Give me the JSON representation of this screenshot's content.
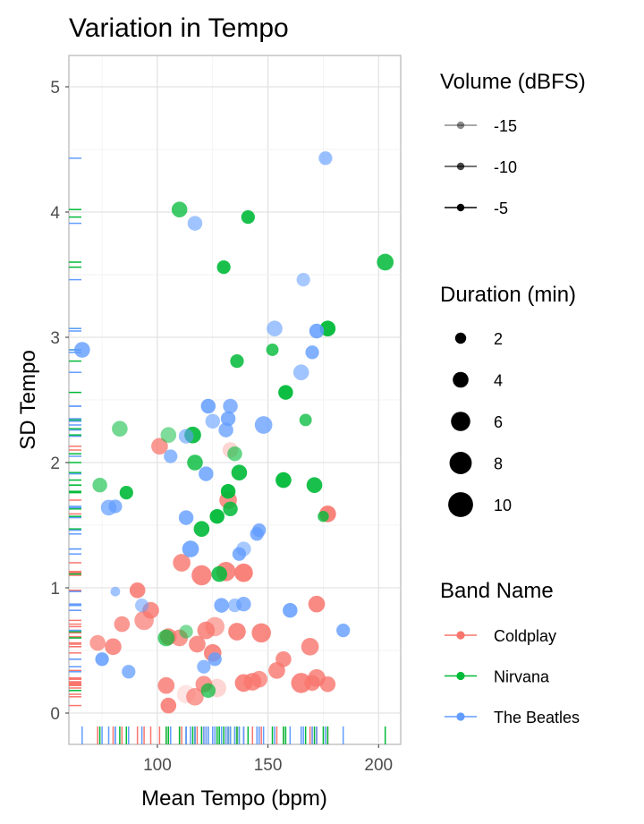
{
  "chart_data": {
    "type": "scatter",
    "title": "Variation in Tempo",
    "xlabel": "Mean Tempo (bpm)",
    "ylabel": "SD Tempo",
    "xlim": [
      60,
      210
    ],
    "ylim": [
      -0.25,
      5.25
    ],
    "x_ticks": [
      100,
      150,
      200
    ],
    "y_ticks": [
      0,
      1,
      2,
      3,
      4,
      5
    ],
    "grid": true,
    "rug": true,
    "legend_position": "right",
    "colors": {
      "Coldplay": "#F8766D",
      "Nirvana": "#00BA38",
      "The Beatles": "#619CFF"
    },
    "legend_volume": {
      "title": "Volume (dBFS)",
      "items": [
        "-15",
        "-10",
        "-5"
      ]
    },
    "legend_duration": {
      "title": "Duration (min)",
      "items": [
        "2",
        "4",
        "6",
        "8",
        "10"
      ]
    },
    "legend_band": {
      "title": "Band Name",
      "items": [
        "Coldplay",
        "Nirvana",
        "The Beatles"
      ]
    },
    "series": [
      {
        "name": "Coldplay",
        "points": [
          [
            73,
            0.56,
            4,
            0.7
          ],
          [
            80,
            0.53,
            4.5,
            0.8
          ],
          [
            84,
            0.71,
            4,
            0.75
          ],
          [
            91,
            0.98,
            4,
            0.85
          ],
          [
            94,
            0.74,
            6,
            0.7
          ],
          [
            97,
            0.82,
            4.5,
            0.8
          ],
          [
            101,
            2.13,
            4.5,
            0.75
          ],
          [
            104,
            0.22,
            4.5,
            0.8
          ],
          [
            105,
            0.61,
            4.5,
            0.8
          ],
          [
            105,
            0.06,
            4,
            0.85
          ],
          [
            110,
            0.6,
            4.5,
            0.75
          ],
          [
            111,
            1.2,
            5,
            0.8
          ],
          [
            113,
            0.15,
            5.5,
            0.2
          ],
          [
            117,
            0.13,
            5,
            0.7
          ],
          [
            118,
            0.55,
            4.5,
            0.8
          ],
          [
            120,
            1.1,
            6.5,
            0.85
          ],
          [
            121,
            0.23,
            4.5,
            0.75
          ],
          [
            122,
            0.66,
            5,
            0.8
          ],
          [
            125,
            0.48,
            5,
            0.85
          ],
          [
            126,
            0.69,
            6,
            0.6
          ],
          [
            127,
            0.2,
            5.5,
            0.3
          ],
          [
            131,
            1.13,
            6,
            0.85
          ],
          [
            132,
            1.7,
            5,
            0.8
          ],
          [
            133,
            2.1,
            4,
            0.3
          ],
          [
            136,
            0.65,
            5,
            0.85
          ],
          [
            139,
            1.12,
            5.5,
            0.9
          ],
          [
            139,
            0.24,
            5,
            0.85
          ],
          [
            143,
            0.25,
            5,
            0.8
          ],
          [
            146,
            0.27,
            4.5,
            0.75
          ],
          [
            147,
            0.64,
            6,
            0.85
          ],
          [
            154,
            0.34,
            4.5,
            0.8
          ],
          [
            157,
            0.43,
            4,
            0.8
          ],
          [
            165,
            0.24,
            6.5,
            0.85
          ],
          [
            169,
            0.53,
            5,
            0.8
          ],
          [
            170,
            0.24,
            4,
            0.8
          ],
          [
            172,
            0.87,
            4.5,
            0.85
          ],
          [
            172,
            0.28,
            5,
            0.8
          ],
          [
            177,
            0.23,
            4,
            0.8
          ],
          [
            177,
            1.59,
            4.5,
            0.9
          ]
        ]
      },
      {
        "name": "Nirvana",
        "points": [
          [
            74,
            1.82,
            3.5,
            0.6
          ],
          [
            83,
            2.27,
            4,
            0.55
          ],
          [
            86,
            1.76,
            3,
            0.9
          ],
          [
            104,
            0.6,
            4.5,
            0.7
          ],
          [
            105,
            2.22,
            4,
            0.5
          ],
          [
            110,
            4.02,
            4,
            0.75
          ],
          [
            113,
            0.65,
            3,
            0.5
          ],
          [
            116,
            2.22,
            4.5,
            0.9
          ],
          [
            117,
            2.0,
            4,
            0.8
          ],
          [
            120,
            1.47,
            4,
            0.9
          ],
          [
            123,
            0.18,
            3.5,
            0.7
          ],
          [
            127,
            1.57,
            3.5,
            0.95
          ],
          [
            128,
            1.11,
            4,
            0.85
          ],
          [
            130,
            3.56,
            3,
            0.9
          ],
          [
            132,
            1.77,
            3.5,
            0.95
          ],
          [
            133,
            1.63,
            3.5,
            0.85
          ],
          [
            135,
            2.07,
            3.5,
            0.6
          ],
          [
            136,
            2.81,
            3,
            0.85
          ],
          [
            137,
            1.92,
            4,
            0.9
          ],
          [
            141,
            3.96,
            3,
            0.9
          ],
          [
            152,
            2.9,
            2.5,
            0.8
          ],
          [
            157,
            1.86,
            4,
            0.95
          ],
          [
            158,
            2.56,
            3.5,
            0.95
          ],
          [
            167,
            2.34,
            2.5,
            0.75
          ],
          [
            171,
            1.82,
            4,
            0.9
          ],
          [
            175,
            1.57,
            2,
            0.8
          ],
          [
            177,
            3.07,
            4,
            0.95
          ],
          [
            203,
            3.6,
            4.5,
            0.85
          ]
        ]
      },
      {
        "name": "The Beatles",
        "points": [
          [
            66,
            2.9,
            4,
            0.8
          ],
          [
            75,
            0.43,
            3,
            0.85
          ],
          [
            78,
            1.64,
            4,
            0.7
          ],
          [
            81,
            1.65,
            3,
            0.75
          ],
          [
            81,
            0.97,
            1.5,
            0.6
          ],
          [
            87,
            0.33,
            3,
            0.75
          ],
          [
            93,
            0.86,
            3,
            0.55
          ],
          [
            106,
            2.05,
            3,
            0.7
          ],
          [
            113,
            2.21,
            3.5,
            0.6
          ],
          [
            113,
            1.56,
            3.5,
            0.8
          ],
          [
            115,
            1.31,
            4.5,
            0.85
          ],
          [
            117,
            3.91,
            3.5,
            0.6
          ],
          [
            121,
            0.37,
            3,
            0.7
          ],
          [
            122,
            1.91,
            3.5,
            0.8
          ],
          [
            123,
            2.45,
            3.5,
            0.85
          ],
          [
            125,
            2.33,
            3.5,
            0.6
          ],
          [
            126,
            0.43,
            3,
            0.8
          ],
          [
            129,
            0.86,
            3.5,
            0.8
          ],
          [
            131,
            2.26,
            3.5,
            0.75
          ],
          [
            132,
            2.35,
            3.5,
            0.8
          ],
          [
            133,
            2.45,
            3.5,
            0.75
          ],
          [
            135,
            0.86,
            3,
            0.6
          ],
          [
            137,
            1.27,
            3,
            0.8
          ],
          [
            139,
            1.31,
            3.5,
            0.55
          ],
          [
            139,
            0.87,
            3.5,
            0.75
          ],
          [
            145,
            1.43,
            3,
            0.8
          ],
          [
            146,
            1.46,
            3,
            0.8
          ],
          [
            148,
            2.3,
            5,
            0.75
          ],
          [
            153,
            3.07,
            4,
            0.6
          ],
          [
            160,
            0.82,
            3.5,
            0.85
          ],
          [
            165,
            2.72,
            4,
            0.6
          ],
          [
            166,
            3.46,
            3,
            0.55
          ],
          [
            170,
            2.88,
            3,
            0.8
          ],
          [
            172,
            3.05,
            3.5,
            0.85
          ],
          [
            176,
            4.43,
            3,
            0.65
          ],
          [
            184,
            0.66,
            3,
            0.8
          ]
        ]
      }
    ]
  }
}
